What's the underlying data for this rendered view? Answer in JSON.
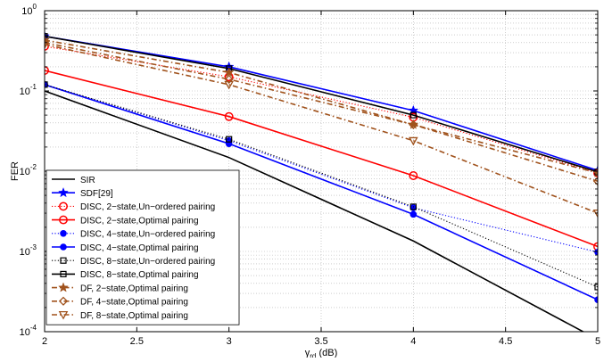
{
  "chart_data": {
    "type": "line",
    "xlabel_main": "γ",
    "xlabel_sub": "rd",
    "xlabel_unit": " (dB)",
    "ylabel": "FER",
    "y_scale": "log",
    "xlim": [
      2,
      5
    ],
    "ylim": [
      0.0001,
      1
    ],
    "grid": true,
    "legend_position": "bottom-left",
    "x_ticks": [
      "2",
      "2.5",
      "3",
      "3.5",
      "4",
      "4.5",
      "5"
    ],
    "y_ticks": [
      {
        "base": "10",
        "exp": "0"
      },
      {
        "base": "10",
        "exp": "-1"
      },
      {
        "base": "10",
        "exp": "-2"
      },
      {
        "base": "10",
        "exp": "-3"
      },
      {
        "base": "10",
        "exp": "-4"
      }
    ],
    "x": [
      2,
      3,
      4,
      5
    ],
    "series": [
      {
        "name": "SIR",
        "color": "#000000",
        "dash": "solid",
        "marker": "none",
        "values": [
          0.1,
          0.0148,
          0.00135,
          8e-05
        ]
      },
      {
        "name": "SDF[29]",
        "color": "#0000ff",
        "dash": "solid",
        "marker": "star",
        "values": [
          0.48,
          0.2,
          0.057,
          0.0102
        ]
      },
      {
        "name": "DISC, 2−state,Un−ordered pairing",
        "color": "#ff0000",
        "dash": "dotted",
        "marker": "circle-open",
        "values": [
          0.36,
          0.15,
          0.047,
          0.0095
        ]
      },
      {
        "name": "DISC, 2−state,Optimal pairing",
        "color": "#ff0000",
        "dash": "solid",
        "marker": "circle-open",
        "values": [
          0.18,
          0.048,
          0.0088,
          0.00115
        ]
      },
      {
        "name": "DISC, 4−state,Un−ordered pairing",
        "color": "#0000ff",
        "dash": "dotted",
        "marker": "dot",
        "values": [
          0.12,
          0.024,
          0.0035,
          0.00098
        ]
      },
      {
        "name": "DISC, 4−state,Optimal pairing",
        "color": "#0000ff",
        "dash": "solid",
        "marker": "dot",
        "values": [
          0.12,
          0.022,
          0.0029,
          0.00025
        ]
      },
      {
        "name": "DISC, 8−state,Un−ordered pairing",
        "color": "#000000",
        "dash": "dotted",
        "marker": "square-open",
        "values": [
          0.12,
          0.025,
          0.0036,
          0.00036
        ]
      },
      {
        "name": "DISC, 8−state,Optimal pairing",
        "color": "#000000",
        "dash": "solid",
        "marker": "square-open",
        "values": [
          0.48,
          0.19,
          0.05,
          0.0098
        ]
      },
      {
        "name": "DF, 2−state,Optimal pairing",
        "color": "#a0521c",
        "dash": "dashdot",
        "marker": "star",
        "values": [
          0.43,
          0.17,
          0.038,
          0.0095
        ]
      },
      {
        "name": "DF, 4−state,Optimal pairing",
        "color": "#a0521c",
        "dash": "dashdot",
        "marker": "diamond-open",
        "values": [
          0.4,
          0.14,
          0.038,
          0.0075
        ]
      },
      {
        "name": "DF, 8−state,Optimal pairing",
        "color": "#a0521c",
        "dash": "dashdot",
        "marker": "triangle-down-open",
        "values": [
          0.38,
          0.12,
          0.024,
          0.003
        ]
      }
    ]
  }
}
